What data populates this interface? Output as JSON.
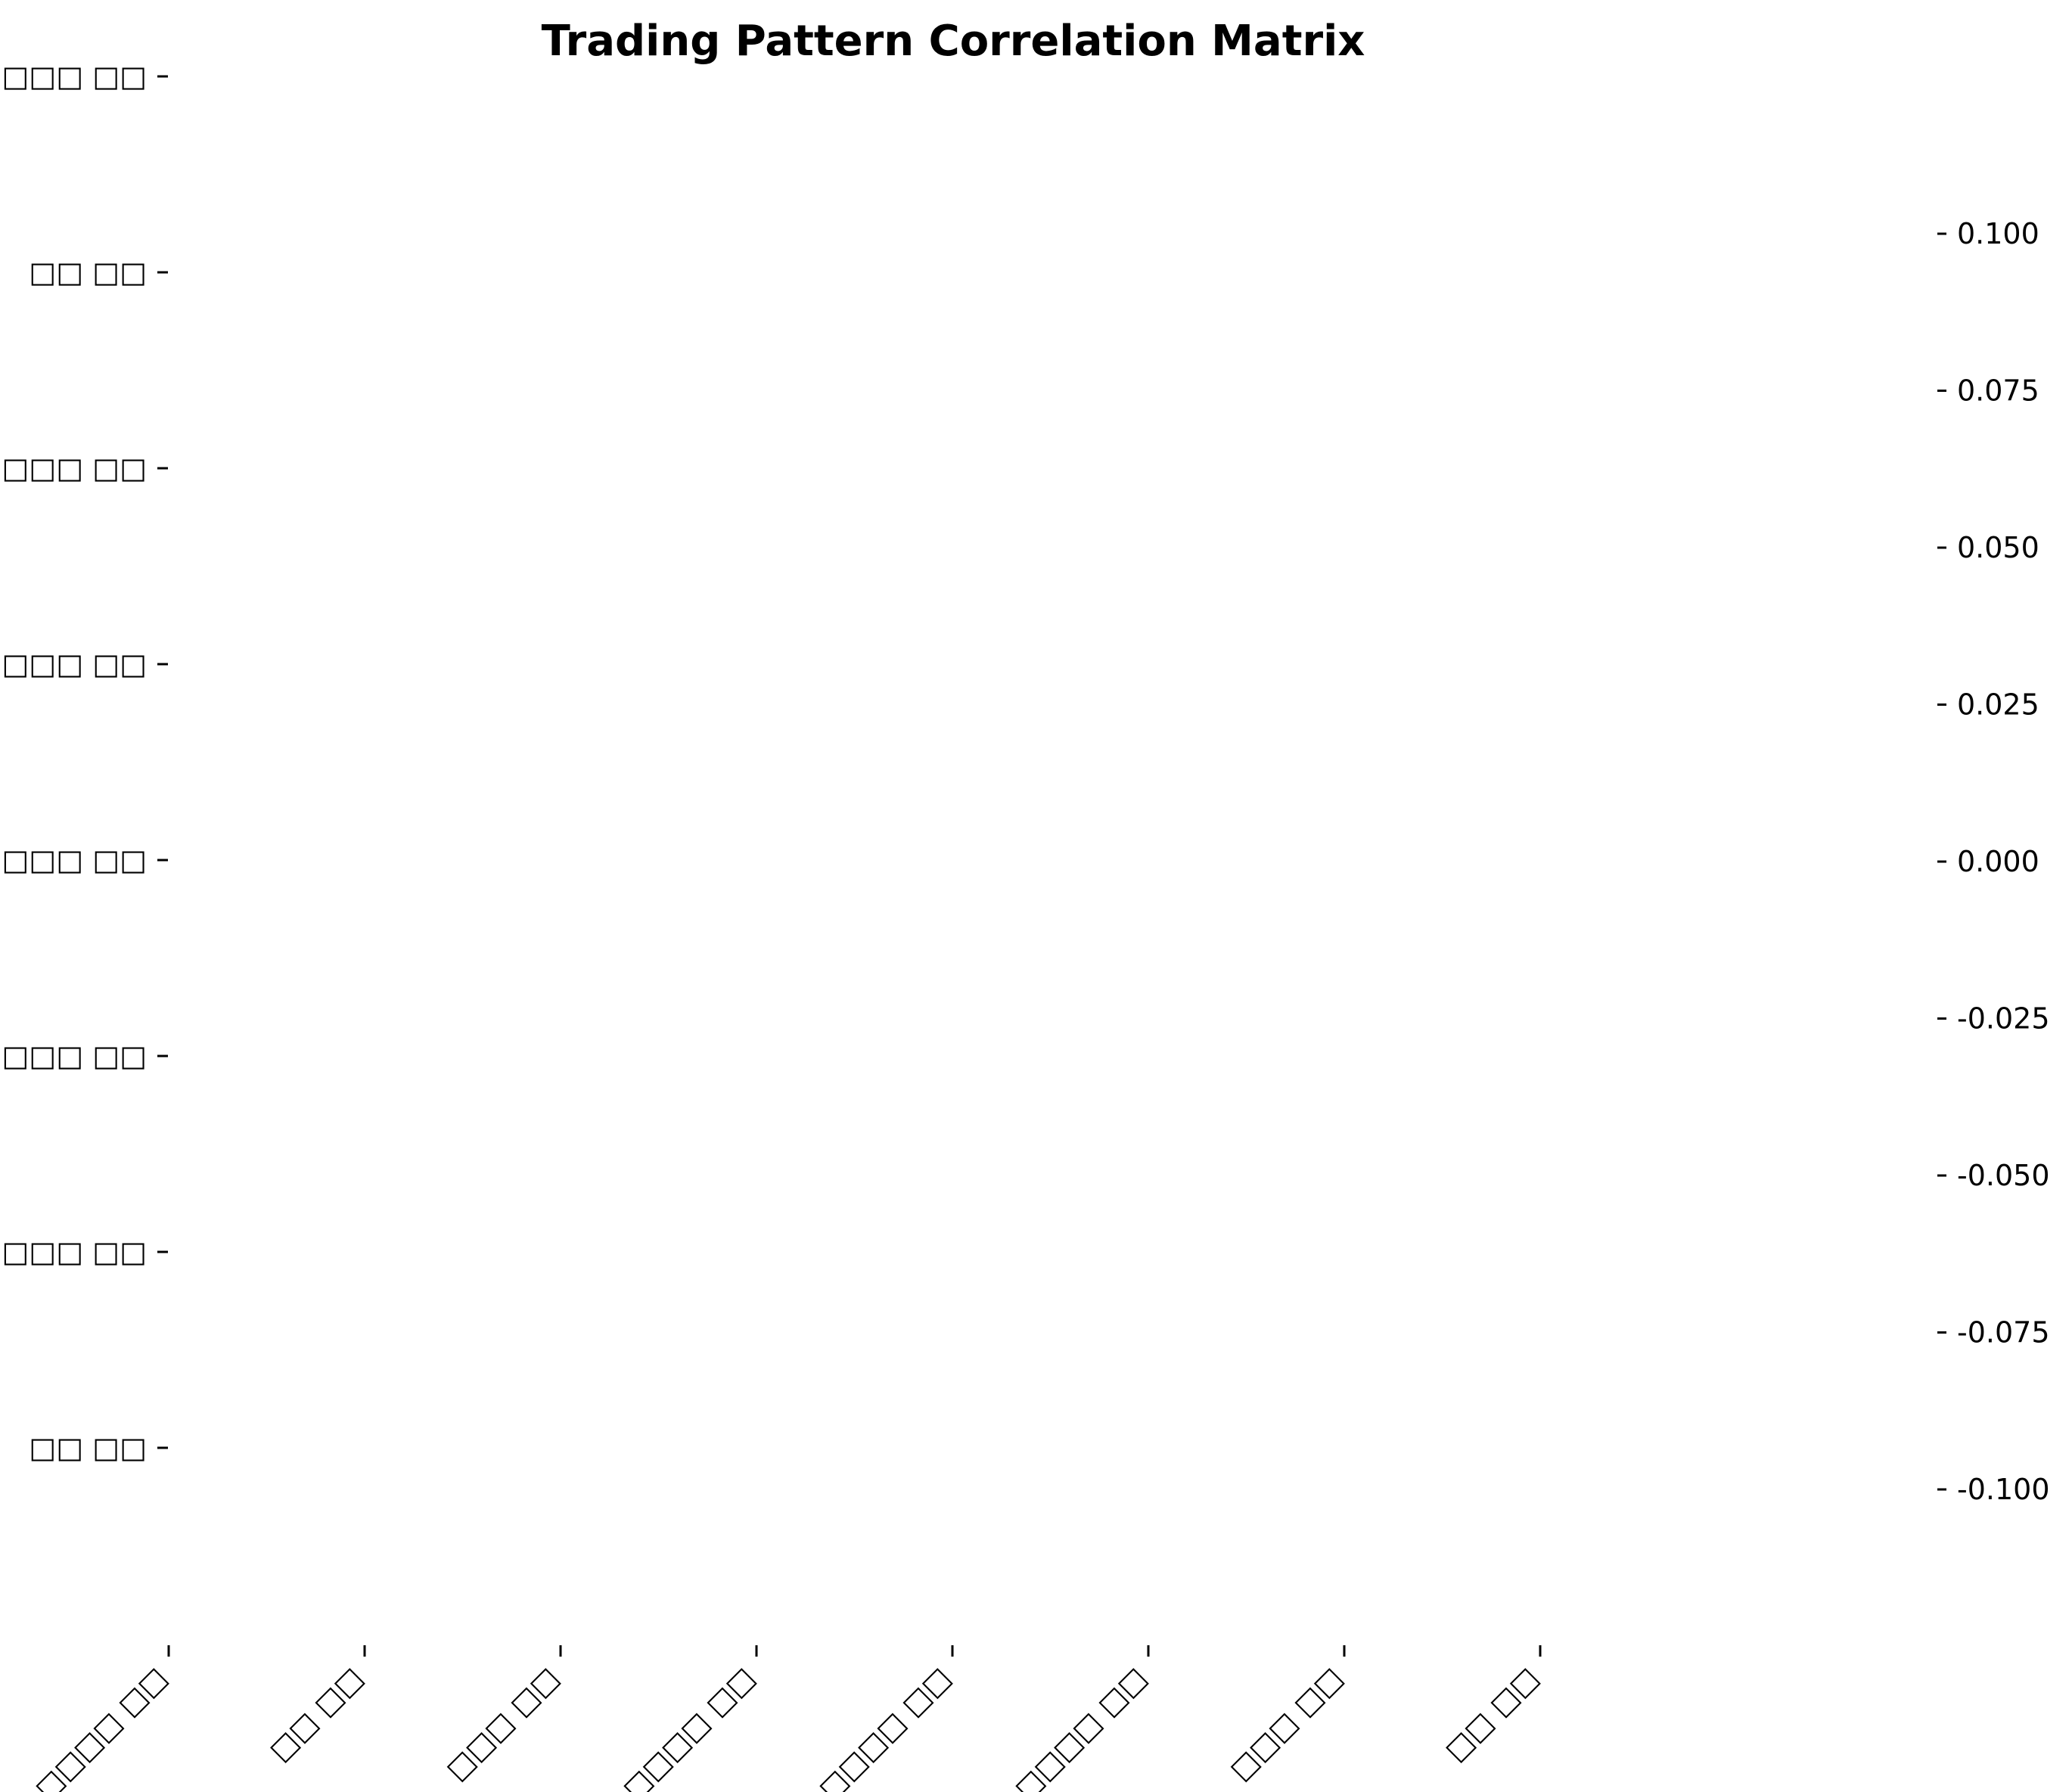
{
  "chart_data": {
    "type": "heatmap",
    "title": "Trading Pattern Correlation Matrix",
    "xlabel": "",
    "ylabel": "",
    "x_categories": [
      "□□□□ □□",
      "□□ □□",
      "□□□ □□",
      "□□□□ □□",
      "□□□□ □□",
      "□□□□ □□",
      "□□□ □□",
      "□□ □□"
    ],
    "y_categories": [
      "□□□□ □□",
      "□□ □□",
      "□□□ □□",
      "□□□□ □□",
      "□□□□ □□",
      "□□□□ □□",
      "□□□ □□",
      "□□ □□"
    ],
    "values": [],
    "colorbar": {
      "ticks": [
        "0.100",
        "0.075",
        "0.050",
        "0.025",
        "0.000",
        "-0.025",
        "-0.050",
        "-0.075",
        "-0.100"
      ],
      "vmin": -0.1,
      "vmax": 0.1
    },
    "grid": false
  }
}
